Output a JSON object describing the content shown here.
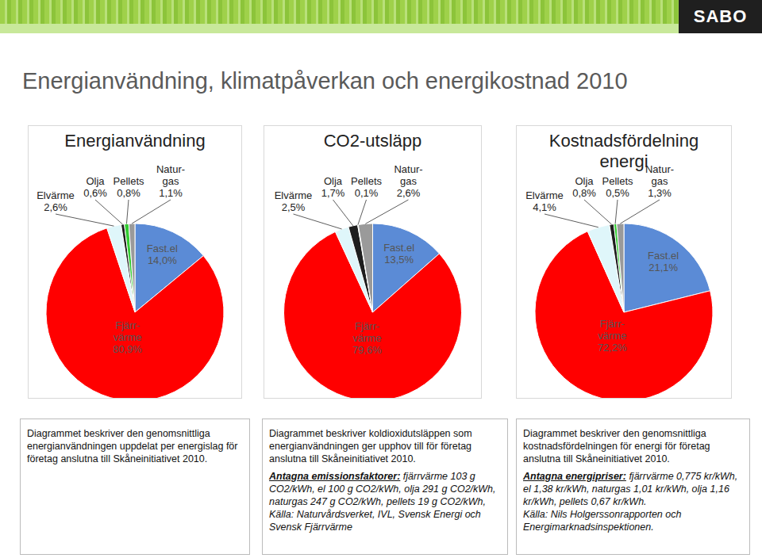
{
  "logo": "SABO",
  "title": "Energianvändning, klimatpåverkan och energikostnad 2010",
  "chart_data": [
    {
      "type": "pie",
      "title": "Energianvändning",
      "categories": [
        "Fast.el",
        "Fjärr-\nvärme",
        "Elvärme",
        "Olja",
        "Pellets",
        "Natur-\ngas"
      ],
      "values": [
        14.0,
        80.9,
        2.6,
        0.6,
        0.8,
        1.1
      ],
      "value_labels": [
        "14,0%",
        "80,9%",
        "2,6%",
        "0,6%",
        "0,8%",
        "1,1%"
      ],
      "colors": [
        "#5b8bd6",
        "#ff0000",
        "#dff6fa",
        "#1e1e1e",
        "#33cc33",
        "#9a9a9a"
      ],
      "data_labels": true,
      "annotations": [
        {
          "text": "Diagrammet beskriver den genomsnittliga energianvändningen uppdelat per energislag för företag anslutna till Skåneinitiativet 2010."
        }
      ]
    },
    {
      "type": "pie",
      "title": "CO2-utsläpp",
      "categories": [
        "Fast.el",
        "Fjärr-\nvärme",
        "Elvärme",
        "Olja",
        "Pellets",
        "Natur-\ngas"
      ],
      "values": [
        13.5,
        79.6,
        2.5,
        1.7,
        0.1,
        2.6
      ],
      "value_labels": [
        "13,5%",
        "79,6%",
        "2,5%",
        "1,7%",
        "0,1%",
        "2,6%"
      ],
      "colors": [
        "#5b8bd6",
        "#ff0000",
        "#dff6fa",
        "#1e1e1e",
        "#33cc33",
        "#9a9a9a"
      ],
      "data_labels": true,
      "annotations": [
        {
          "text": "Diagrammet beskriver koldioxidutsläppen som energianvändningen ger upphov till för företag anslutna till Skåneinitiativet 2010."
        },
        {
          "lead": "Antagna emissionsfaktorer:",
          "text": "fjärrvärme 103 g CO2/kWh, el 100 g CO2/kWh, olja 291 g CO2/kWh, naturgas 247 g CO2/kWh, pellets 19 g CO2/kWh, Källa: Naturvårdsverket, IVL, Svensk Energi och Svensk Fjärrvärme"
        }
      ]
    },
    {
      "type": "pie",
      "title": "Kostnadsfördelning energi",
      "categories": [
        "Fast.el",
        "Fjärr-\nvärme",
        "Elvärme",
        "Olja",
        "Pellets",
        "Natur-\ngas"
      ],
      "values": [
        21.1,
        72.2,
        4.1,
        0.8,
        0.5,
        1.3
      ],
      "value_labels": [
        "21,1%",
        "72,2%",
        "4,1%",
        "0,8%",
        "0,5%",
        "1,3%"
      ],
      "colors": [
        "#5b8bd6",
        "#ff0000",
        "#dff6fa",
        "#1e1e1e",
        "#33cc33",
        "#9a9a9a"
      ],
      "data_labels": true,
      "annotations": [
        {
          "text": "Diagrammet beskriver den genomsnittliga kostnadsfördelningen för energi för företag anslutna till Skåneinitiativet 2010."
        },
        {
          "lead": "Antagna energipriser:",
          "text": "fjärrvärme 0,775 kr/kWh, el 1,38 kr/kWh, naturgas 1,01 kr/kWh, olja 1,16 kr/kWh, pellets 0,67 kr/kWh.\nKälla: Nils Holgerssonrapporten och Energimarknadsinspektionen."
        }
      ]
    }
  ]
}
